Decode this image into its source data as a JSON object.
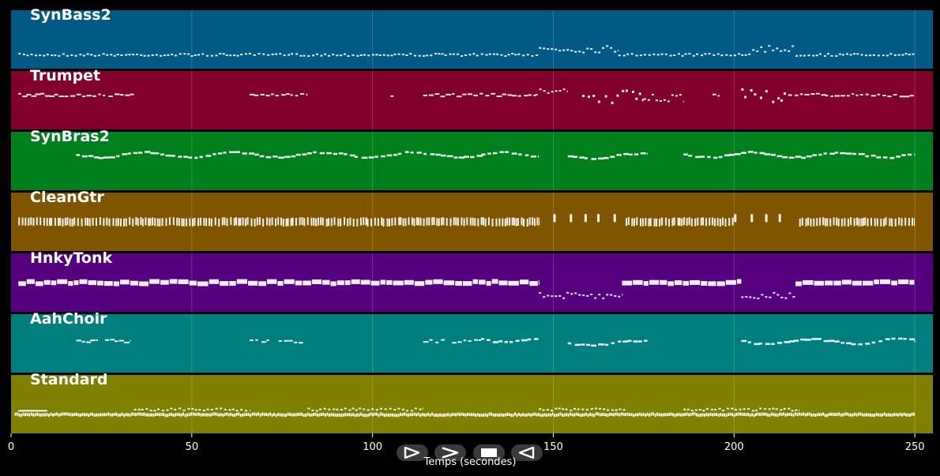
{
  "chart_data": {
    "type": "piano-roll",
    "xlabel": "Temps (secondes)",
    "xlim": [
      0,
      255
    ],
    "xticks": [
      0,
      50,
      100,
      150,
      200,
      250
    ],
    "grid": true,
    "tracks": [
      {
        "name": "SynBass2",
        "color": "#005a85",
        "segments": [
          {
            "t0": 2,
            "t1": 146,
            "level": 0.75,
            "style": "dots"
          },
          {
            "t0": 146,
            "t1": 168,
            "level": 0.65,
            "style": "run"
          },
          {
            "t0": 168,
            "t1": 205,
            "level": 0.75,
            "style": "dots"
          },
          {
            "t0": 205,
            "t1": 217,
            "level": 0.65,
            "style": "run"
          },
          {
            "t0": 217,
            "t1": 250,
            "level": 0.75,
            "style": "dots"
          }
        ]
      },
      {
        "name": "Trumpet",
        "color": "#80002b",
        "segments": [
          {
            "t0": 2,
            "t1": 34,
            "level": 0.4,
            "style": "dashes"
          },
          {
            "t0": 66,
            "t1": 82,
            "level": 0.4,
            "style": "dashes"
          },
          {
            "t0": 105,
            "t1": 106,
            "level": 0.42,
            "style": "dashes"
          },
          {
            "t0": 114,
            "t1": 146,
            "level": 0.4,
            "style": "dashes"
          },
          {
            "t0": 145,
            "t1": 154,
            "level": 0.35,
            "style": "run"
          },
          {
            "t0": 158,
            "t1": 175,
            "level": 0.42,
            "style": "scatter"
          },
          {
            "t0": 175,
            "t1": 186,
            "level": 0.45,
            "style": "run"
          },
          {
            "t0": 194,
            "t1": 196,
            "level": 0.4,
            "style": "dashes"
          },
          {
            "t0": 202,
            "t1": 215,
            "level": 0.4,
            "style": "scatter"
          },
          {
            "t0": 215,
            "t1": 250,
            "level": 0.4,
            "style": "dashes"
          }
        ]
      },
      {
        "name": "SynBras2",
        "color": "#007f1e",
        "segments": [
          {
            "t0": 18,
            "t1": 146,
            "level": 0.38,
            "style": "wave"
          },
          {
            "t0": 154,
            "t1": 176,
            "level": 0.4,
            "style": "wave"
          },
          {
            "t0": 186,
            "t1": 250,
            "level": 0.38,
            "style": "wave"
          }
        ]
      },
      {
        "name": "CleanGtr",
        "color": "#7f5500",
        "segments": [
          {
            "t0": 2,
            "t1": 146,
            "level": 0.5,
            "style": "bars"
          },
          {
            "t0": 150,
            "t1": 170,
            "level": 0.45,
            "style": "sparse"
          },
          {
            "t0": 170,
            "t1": 200,
            "level": 0.5,
            "style": "bars"
          },
          {
            "t0": 200,
            "t1": 216,
            "level": 0.45,
            "style": "sparse"
          },
          {
            "t0": 218,
            "t1": 250,
            "level": 0.5,
            "style": "bars"
          }
        ]
      },
      {
        "name": "HnkyTonk",
        "color": "#55007f",
        "segments": [
          {
            "t0": 2,
            "t1": 146,
            "level": 0.5,
            "style": "thick"
          },
          {
            "t0": 146,
            "t1": 169,
            "level": 0.72,
            "style": "run"
          },
          {
            "t0": 169,
            "t1": 202,
            "level": 0.5,
            "style": "thick"
          },
          {
            "t0": 202,
            "t1": 217,
            "level": 0.72,
            "style": "run"
          },
          {
            "t0": 217,
            "t1": 250,
            "level": 0.5,
            "style": "thick"
          }
        ]
      },
      {
        "name": "AahChoir",
        "color": "#007f7f",
        "segments": [
          {
            "t0": 18,
            "t1": 24,
            "level": 0.45,
            "style": "dashes"
          },
          {
            "t0": 26,
            "t1": 33,
            "level": 0.45,
            "style": "dashes"
          },
          {
            "t0": 66,
            "t1": 72,
            "level": 0.45,
            "style": "dashes"
          },
          {
            "t0": 74,
            "t1": 81,
            "level": 0.45,
            "style": "dashes"
          },
          {
            "t0": 114,
            "t1": 120,
            "level": 0.45,
            "style": "dashes"
          },
          {
            "t0": 122,
            "t1": 130,
            "level": 0.45,
            "style": "dashes"
          },
          {
            "t0": 130,
            "t1": 146,
            "level": 0.42,
            "style": "wave"
          },
          {
            "t0": 154,
            "t1": 176,
            "level": 0.48,
            "style": "wave"
          },
          {
            "t0": 202,
            "t1": 250,
            "level": 0.45,
            "style": "wave"
          }
        ]
      },
      {
        "name": "Standard",
        "color": "#7f7f00",
        "segments": [
          {
            "t0": 1,
            "t1": 250,
            "level": 0.68,
            "style": "drums"
          },
          {
            "t0": 34,
            "t1": 66,
            "level": 0.58,
            "style": "dots"
          },
          {
            "t0": 82,
            "t1": 114,
            "level": 0.58,
            "style": "dots"
          },
          {
            "t0": 146,
            "t1": 170,
            "level": 0.58,
            "style": "dots"
          },
          {
            "t0": 186,
            "t1": 218,
            "level": 0.58,
            "style": "dots"
          },
          {
            "t0": 2,
            "t1": 10,
            "level": 0.6,
            "style": "line"
          }
        ]
      }
    ]
  },
  "controls": [
    {
      "name": "play",
      "icon": "play-outline-icon"
    },
    {
      "name": "fast-forward",
      "icon": "fast-forward-icon"
    },
    {
      "name": "stop",
      "icon": "stop-icon"
    },
    {
      "name": "rewind",
      "icon": "rewind-icon"
    }
  ]
}
